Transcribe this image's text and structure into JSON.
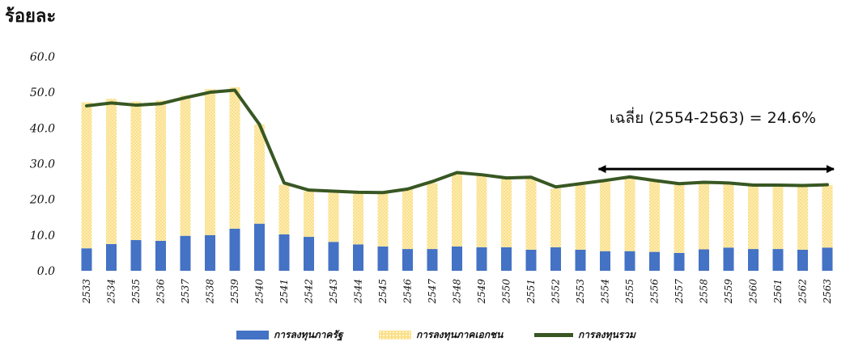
{
  "colors": {
    "public": "#4472c4",
    "private_fill": "#fbe08a",
    "private_dot": "#fffbe6",
    "total_line": "#385723",
    "arrow": "#000000"
  },
  "chart_data": {
    "type": "bar",
    "stacked": true,
    "ylabel": "ร้อยละ",
    "ylim": [
      0,
      60
    ],
    "yticks": [
      "0.0",
      "10.0",
      "20.0",
      "30.0",
      "40.0",
      "50.0",
      "60.0"
    ],
    "grid": false,
    "legend_position": "bottom",
    "categories": [
      "2533",
      "2534",
      "2535",
      "2536",
      "2537",
      "2538",
      "2539",
      "2540",
      "2541",
      "2542",
      "2543",
      "2544",
      "2545",
      "2546",
      "2547",
      "2548",
      "2549",
      "2550",
      "2551",
      "2552",
      "2553",
      "2554",
      "2555",
      "2556",
      "2557",
      "2558",
      "2559",
      "2560",
      "2561",
      "2562",
      "2563"
    ],
    "series": [
      {
        "name": "การลงทุนภาครัฐ",
        "type": "bar",
        "values": [
          6.3,
          7.5,
          8.6,
          8.4,
          9.8,
          10.0,
          11.8,
          13.2,
          10.2,
          9.5,
          8.1,
          7.4,
          6.8,
          6.1,
          6.1,
          6.8,
          6.6,
          6.6,
          5.9,
          6.6,
          5.9,
          5.5,
          5.5,
          5.3,
          5.0,
          6.0,
          6.5,
          6.1,
          6.1,
          5.9,
          6.5
        ]
      },
      {
        "name": "การลงทุนภาคเอกชน",
        "type": "bar",
        "values": [
          40.9,
          40.7,
          38.8,
          39.3,
          39.3,
          40.9,
          39.6,
          27.8,
          13.9,
          12.8,
          14.0,
          14.3,
          15.0,
          16.8,
          18.5,
          20.4,
          20.1,
          19.2,
          20.0,
          16.4,
          18.1,
          19.4,
          20.4,
          19.7,
          19.2,
          18.8,
          18.2,
          17.8,
          17.8,
          18.0,
          17.5
        ]
      },
      {
        "name": "การลงทุนรวม",
        "type": "line",
        "values": [
          46.2,
          47.0,
          46.4,
          46.8,
          48.5,
          50.0,
          50.6,
          41.0,
          24.6,
          22.6,
          22.3,
          22.0,
          21.9,
          22.9,
          25.0,
          27.5,
          26.9,
          26.0,
          26.2,
          23.5,
          24.4,
          25.3,
          26.3,
          25.3,
          24.4,
          24.8,
          24.6,
          24.0,
          24.0,
          23.9,
          24.1
        ]
      }
    ],
    "annotation": {
      "text": "เฉลี่ย (2554-2563) = 24.6%",
      "from": "2554",
      "to": "2563",
      "y": 28.5
    }
  }
}
